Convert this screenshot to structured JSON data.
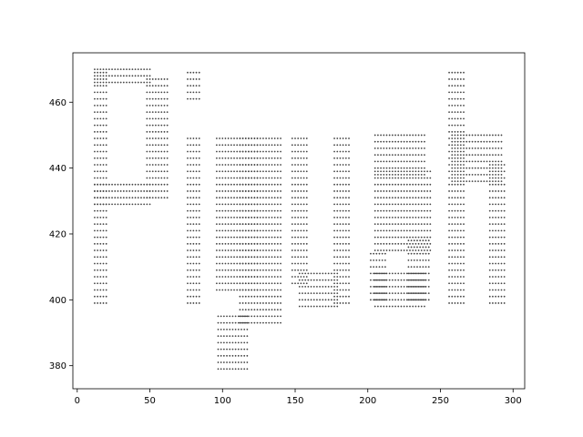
{
  "chart_data": {
    "type": "scatter",
    "title": "",
    "xlabel": "",
    "ylabel": "",
    "xlim": [
      -3,
      308
    ],
    "ylim": [
      373,
      475
    ],
    "x_ticks": [
      0,
      50,
      100,
      150,
      200,
      250,
      300
    ],
    "y_ticks": [
      380,
      400,
      420,
      440,
      460
    ],
    "grid": false,
    "legend": "none",
    "marker_color": "#444444",
    "marker": "small dot grid",
    "depicted_text": "Piyush",
    "series": [
      {
        "name": "",
        "point_spacing": 2,
        "regions": [
          {
            "letter": "P",
            "part": "stem",
            "x": [
              12,
              20
            ],
            "y": [
              399,
              470
            ]
          },
          {
            "letter": "P",
            "part": "top bar",
            "x": [
              12,
              50
            ],
            "y": [
              466,
              470
            ]
          },
          {
            "letter": "P",
            "part": "middle bar",
            "x": [
              12,
              50
            ],
            "y": [
              429,
              436
            ]
          },
          {
            "letter": "P",
            "part": "bowl",
            "x": [
              48,
              62
            ],
            "y": [
              431,
              468
            ]
          },
          {
            "letter": "i",
            "part": "dot",
            "x": [
              76,
              84
            ],
            "y": [
              461,
              470
            ]
          },
          {
            "letter": "i",
            "part": "stem",
            "x": [
              76,
              84
            ],
            "y": [
              399,
              450
            ]
          },
          {
            "letter": "y",
            "part": "left arm",
            "x": [
              96,
              124
            ],
            "y": [
              403,
              450
            ]
          },
          {
            "letter": "y",
            "part": "right arm",
            "x": [
              112,
              140
            ],
            "y": [
              393,
              450
            ]
          },
          {
            "letter": "y",
            "part": "tail",
            "x": [
              97,
              118
            ],
            "y": [
              379,
              395
            ]
          },
          {
            "letter": "u",
            "part": "left stem",
            "x": [
              148,
              158
            ],
            "y": [
              405,
              450
            ]
          },
          {
            "letter": "u",
            "part": "right stem",
            "x": [
              177,
              187
            ],
            "y": [
              399,
              450
            ]
          },
          {
            "letter": "u",
            "part": "bottom bowl",
            "x": [
              153,
              180
            ],
            "y": [
              398,
              408
            ]
          },
          {
            "letter": "s",
            "part": "top arc",
            "x": [
              205,
              240
            ],
            "y": [
              438,
              451
            ]
          },
          {
            "letter": "s",
            "part": "spine",
            "x": [
              205,
              243
            ],
            "y": [
              415,
              440
            ]
          },
          {
            "letter": "s",
            "part": "lower right",
            "x": [
              228,
              243
            ],
            "y": [
              400,
              419
            ]
          },
          {
            "letter": "s",
            "part": "lower left",
            "x": [
              202,
              212
            ],
            "y": [
              400,
              414
            ]
          },
          {
            "letter": "s",
            "part": "bottom arc",
            "x": [
              205,
              240
            ],
            "y": [
              398,
              408
            ]
          },
          {
            "letter": "h",
            "part": "stem",
            "x": [
              256,
              266
            ],
            "y": [
              399,
              470
            ]
          },
          {
            "letter": "h",
            "part": "arch",
            "x": [
              258,
              292
            ],
            "y": [
              436,
              451
            ]
          },
          {
            "letter": "h",
            "part": "right leg",
            "x": [
              284,
              294
            ],
            "y": [
              399,
              442
            ]
          }
        ]
      }
    ]
  }
}
